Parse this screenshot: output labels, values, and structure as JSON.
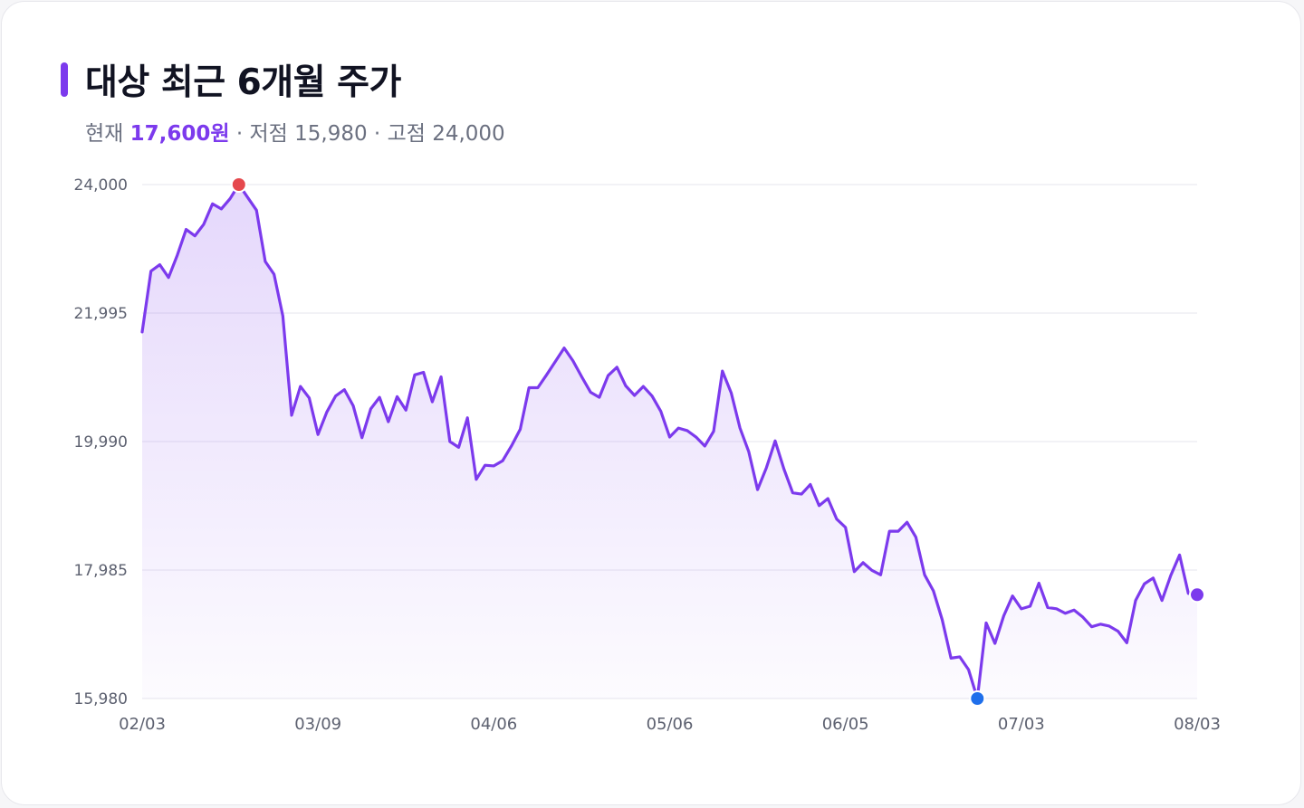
{
  "title": "대상 최근 6개월 주가",
  "subtitle": {
    "current_label": "현재",
    "current_value": "17,600원",
    "sep1": " · ",
    "low_label": "저점",
    "low_value": "15,980",
    "sep2": " · ",
    "high_label": "고점",
    "high_value": "24,000"
  },
  "colors": {
    "accent": "#7c3aed",
    "high_marker": "#e5484d",
    "low_marker": "#1f6feb",
    "grid": "#e6e6ee"
  },
  "chart_data": {
    "type": "line",
    "title": "대상 최근 6개월 주가",
    "xlabel": "",
    "ylabel": "",
    "ylim": [
      15980,
      24000
    ],
    "y_ticks": [
      15980,
      17985,
      19990,
      21995,
      24000
    ],
    "y_tick_labels": [
      "15,980",
      "17,985",
      "19,990",
      "21,995",
      "24,000"
    ],
    "x_tick_labels": [
      "02/03",
      "03/09",
      "04/06",
      "05/06",
      "06/05",
      "07/03",
      "08/03"
    ],
    "x_tick_index": [
      0,
      20,
      40,
      60,
      80,
      100,
      120
    ],
    "grid": true,
    "legend": "none",
    "markers": {
      "high_index": 11,
      "low_index": 95,
      "last_index": 120
    },
    "series": [
      {
        "values": [
          21700,
          22650,
          22750,
          22550,
          22900,
          23300,
          23200,
          23380,
          23700,
          23620,
          23780,
          24000,
          23800,
          23600,
          22800,
          22600,
          21950,
          20400,
          20850,
          20670,
          20100,
          20450,
          20700,
          20800,
          20550,
          20050,
          20500,
          20680,
          20300,
          20690,
          20480,
          21030,
          21070,
          20610,
          21000,
          19990,
          19900,
          20360,
          19400,
          19620,
          19610,
          19690,
          19920,
          20180,
          20830,
          20830,
          21030,
          21240,
          21450,
          21250,
          21000,
          20760,
          20680,
          21020,
          21150,
          20860,
          20710,
          20850,
          20700,
          20460,
          20060,
          20200,
          20160,
          20060,
          19920,
          20150,
          21090,
          20750,
          20200,
          19830,
          19240,
          19580,
          20000,
          19560,
          19190,
          19170,
          19320,
          18990,
          19100,
          18780,
          18650,
          17960,
          18100,
          17980,
          17910,
          18590,
          18590,
          18730,
          18500,
          17910,
          17660,
          17210,
          16610,
          16630,
          16430,
          15980,
          17160,
          16840,
          17270,
          17580,
          17380,
          17420,
          17780,
          17400,
          17380,
          17310,
          17360,
          17250,
          17100,
          17140,
          17110,
          17030,
          16850,
          17510,
          17770,
          17860,
          17510,
          17900,
          18220,
          17620,
          17600
        ]
      }
    ]
  }
}
